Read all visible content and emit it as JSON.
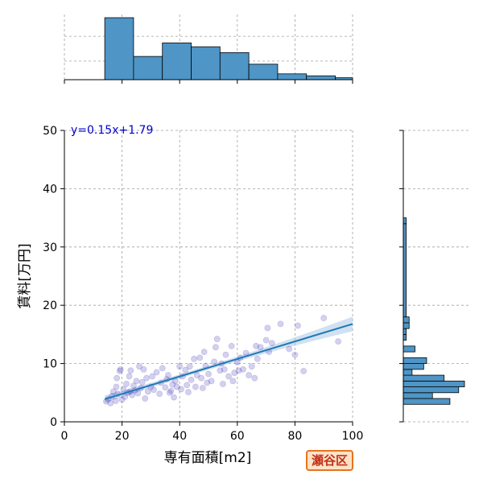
{
  "chart_data": {
    "type": "scatter",
    "xlabel": "専有面積[m2]",
    "ylabel": "賃料[万円]",
    "xlim": [
      0,
      100
    ],
    "ylim": [
      0,
      50
    ],
    "xticks": [
      0,
      20,
      40,
      60,
      80,
      100
    ],
    "yticks": [
      0,
      10,
      20,
      30,
      40,
      50
    ],
    "grid": true,
    "regression": {
      "equation": "y=0.15x+1.79",
      "slope": 0.15,
      "intercept": 1.79,
      "x_range": [
        14,
        100
      ]
    },
    "points": [
      [
        14.5,
        3.5
      ],
      [
        15.2,
        3.9
      ],
      [
        16.0,
        3.2
      ],
      [
        16.5,
        4.4
      ],
      [
        17.0,
        5.2
      ],
      [
        17.8,
        3.6
      ],
      [
        18.0,
        6.0
      ],
      [
        18.5,
        4.8
      ],
      [
        19.2,
        8.7
      ],
      [
        19.5,
        9.0
      ],
      [
        20.0,
        3.8
      ],
      [
        20.5,
        5.6
      ],
      [
        21.0,
        4.3
      ],
      [
        21.5,
        6.5
      ],
      [
        22.0,
        5.0
      ],
      [
        22.5,
        7.8
      ],
      [
        23.0,
        8.8
      ],
      [
        23.5,
        4.6
      ],
      [
        24.0,
        6.2
      ],
      [
        24.5,
        5.4
      ],
      [
        25.0,
        7.0
      ],
      [
        25.5,
        4.9
      ],
      [
        26.0,
        9.5
      ],
      [
        26.5,
        5.8
      ],
      [
        27.0,
        6.8
      ],
      [
        28.0,
        4.0
      ],
      [
        28.5,
        7.5
      ],
      [
        29.0,
        5.2
      ],
      [
        30.0,
        6.0
      ],
      [
        30.5,
        7.8
      ],
      [
        31.0,
        5.5
      ],
      [
        32.0,
        8.5
      ],
      [
        33.0,
        4.8
      ],
      [
        33.5,
        6.7
      ],
      [
        34.0,
        9.2
      ],
      [
        35.0,
        5.9
      ],
      [
        35.5,
        7.3
      ],
      [
        36.0,
        8.0
      ],
      [
        37.0,
        5.3
      ],
      [
        37.5,
        6.4
      ],
      [
        38.0,
        4.2
      ],
      [
        38.5,
        7.0
      ],
      [
        39.0,
        6.0
      ],
      [
        40.0,
        9.5
      ],
      [
        40.5,
        5.6
      ],
      [
        41.0,
        7.8
      ],
      [
        42.0,
        8.9
      ],
      [
        42.5,
        6.3
      ],
      [
        43.0,
        5.1
      ],
      [
        44.0,
        7.2
      ],
      [
        45.0,
        10.8
      ],
      [
        45.5,
        6.0
      ],
      [
        46.0,
        8.0
      ],
      [
        47.0,
        11.0
      ],
      [
        47.5,
        7.5
      ],
      [
        48.0,
        5.8
      ],
      [
        49.0,
        9.6
      ],
      [
        49.5,
        6.7
      ],
      [
        50.0,
        8.2
      ],
      [
        51.0,
        7.0
      ],
      [
        52.0,
        10.3
      ],
      [
        52.5,
        12.8
      ],
      [
        53.0,
        14.2
      ],
      [
        54.0,
        8.8
      ],
      [
        55.0,
        6.5
      ],
      [
        55.5,
        9.0
      ],
      [
        56.0,
        11.5
      ],
      [
        57.0,
        7.8
      ],
      [
        58.0,
        13.0
      ],
      [
        59.0,
        8.4
      ],
      [
        60.0,
        10.2
      ],
      [
        61.0,
        11.0
      ],
      [
        62.0,
        9.0
      ],
      [
        63.0,
        11.8
      ],
      [
        64.0,
        8.0
      ],
      [
        65.0,
        9.5
      ],
      [
        66.0,
        7.5
      ],
      [
        67.0,
        10.8
      ],
      [
        68.0,
        12.8
      ],
      [
        70.0,
        14.0
      ],
      [
        70.5,
        16.1
      ],
      [
        71.0,
        12.0
      ],
      [
        72.0,
        13.5
      ],
      [
        75.0,
        16.8
      ],
      [
        78.0,
        12.5
      ],
      [
        80.0,
        11.5
      ],
      [
        81.0,
        16.5
      ],
      [
        83.0,
        8.7
      ],
      [
        90.0,
        17.8
      ],
      [
        95.0,
        13.8
      ],
      [
        18.2,
        7.5
      ],
      [
        22.8,
        5.2
      ],
      [
        27.5,
        9.0
      ],
      [
        36.5,
        5.0
      ],
      [
        43.5,
        9.5
      ],
      [
        48.5,
        12.0
      ],
      [
        54.5,
        10.0
      ],
      [
        60.5,
        8.8
      ],
      [
        66.5,
        13.0
      ],
      [
        58.5,
        7.0
      ]
    ],
    "hist_x": {
      "bins": [
        14,
        24,
        34,
        44,
        54,
        64,
        74,
        84,
        94,
        100
      ],
      "counts": [
        32,
        12,
        19,
        17,
        14,
        8,
        3,
        2,
        1
      ]
    },
    "hist_y": {
      "bins": [
        3,
        4,
        5,
        6,
        7,
        8,
        9,
        10,
        11,
        12,
        13,
        14,
        15,
        16,
        17,
        18,
        34,
        35
      ],
      "counts": [
        16,
        10,
        19,
        21,
        14,
        3,
        7,
        8,
        0,
        4,
        0,
        1,
        1,
        2,
        2,
        1,
        1
      ]
    },
    "colors": {
      "points": "#3a2fb5",
      "line": "#1f77b4",
      "ci_band": "#a9c8e6",
      "bars": "#4f95c6",
      "grid": "#a0a0a0"
    }
  },
  "badge": {
    "text": "瀬谷区"
  }
}
